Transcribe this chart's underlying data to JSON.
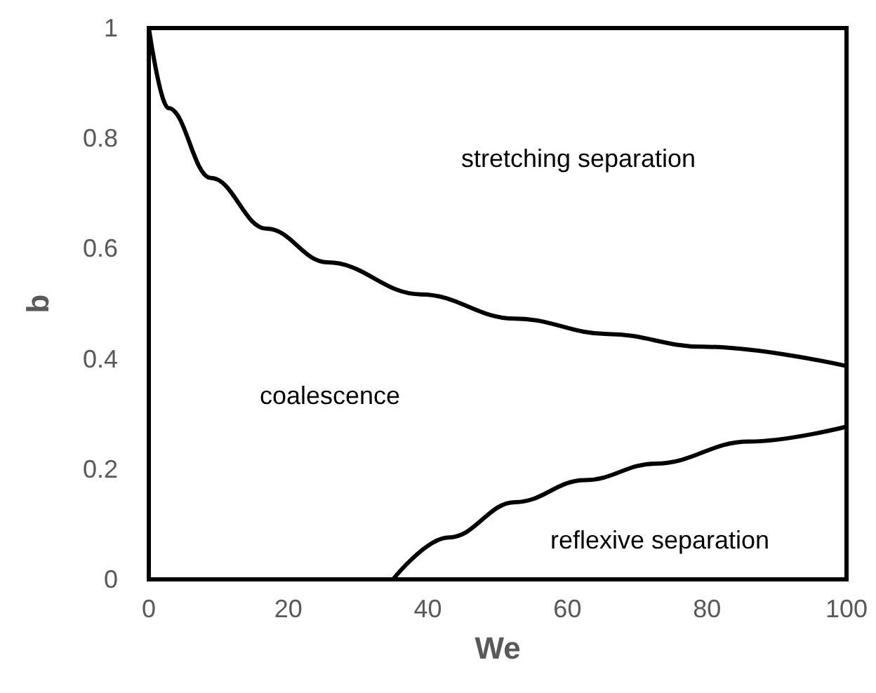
{
  "chart_data": {
    "type": "line",
    "xlabel": "We",
    "ylabel": "b",
    "xlim": [
      0,
      100
    ],
    "xticks": [
      0,
      20,
      40,
      60,
      80,
      100
    ],
    "ylim": [
      0,
      1
    ],
    "yticks": [
      0,
      0.2,
      0.4,
      0.6,
      0.8,
      1
    ],
    "grid": false,
    "marker": "none",
    "line_style": "solid",
    "series": [
      {
        "color": "#000000",
        "x": [
          0,
          2.8,
          8.9,
          16.9,
          25.6,
          39,
          52.5,
          65.8,
          79.3,
          100
        ],
        "values": [
          1,
          0.855,
          0.728,
          0.636,
          0.575,
          0.517,
          0.473,
          0.445,
          0.422,
          0.387
        ]
      },
      {
        "color": "#000000",
        "x": [
          35,
          43,
          52.5,
          62.5,
          72.6,
          86,
          100
        ],
        "values": [
          0,
          0.076,
          0.14,
          0.18,
          0.21,
          0.25,
          0.277
        ]
      }
    ],
    "annotations": [
      "stretching separation",
      "coalescence",
      "reflexive separation"
    ]
  }
}
